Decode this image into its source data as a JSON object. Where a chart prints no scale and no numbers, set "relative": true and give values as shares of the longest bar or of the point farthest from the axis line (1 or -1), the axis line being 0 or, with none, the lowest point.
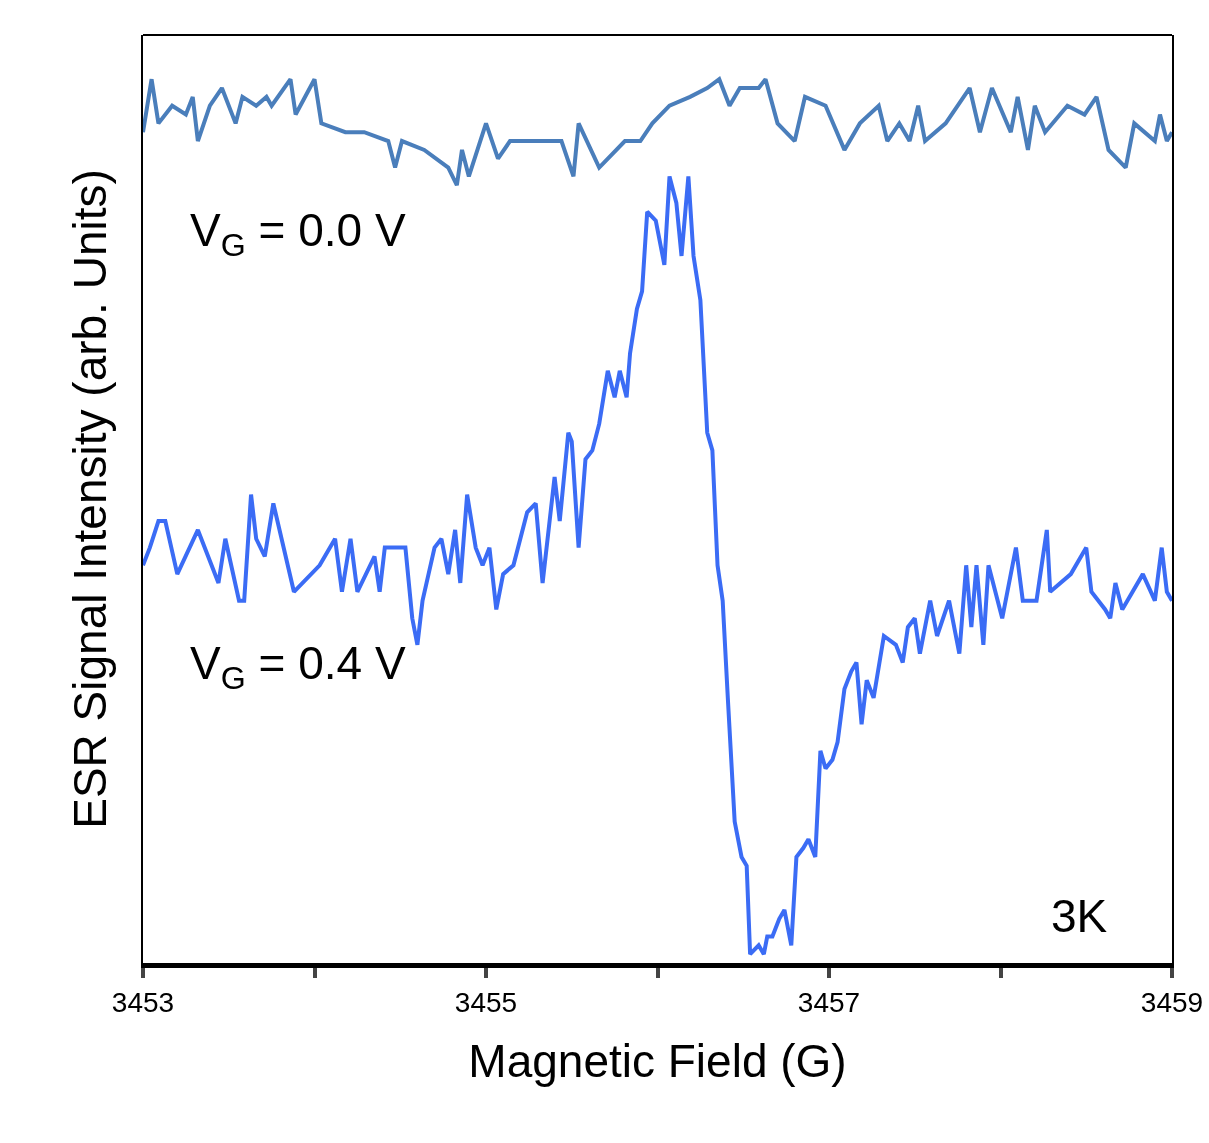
{
  "chart_data": {
    "type": "line",
    "relative": true,
    "xlabel": "Magnetic Field (G)",
    "ylabel": "ESR Signal Intensity (arb. Units)",
    "xlim": [
      3453,
      3459
    ],
    "xticks": [
      3453,
      {
        "value": 3454,
        "label": null
      },
      3455,
      {
        "value": 3456,
        "label": null
      },
      3457,
      {
        "value": 3458,
        "label": null
      },
      3459
    ],
    "grid": false,
    "legend": false,
    "marker": "none",
    "line_style": "solid",
    "annotations": [
      "3K"
    ],
    "series": [
      {
        "name": "V$_{G}$ = 0.0 V",
        "color": "#4a7ebb",
        "x": [
          3453.0,
          3453.05,
          3453.09,
          3453.17,
          3453.25,
          3453.29,
          3453.32,
          3453.39,
          3453.46,
          3453.54,
          3453.58,
          3453.66,
          3453.72,
          3453.75,
          3453.86,
          3453.89,
          3454.0,
          3454.04,
          3454.18,
          3454.29,
          3454.43,
          3454.47,
          3454.51,
          3454.64,
          3454.78,
          3454.83,
          3454.86,
          3454.9,
          3455.0,
          3455.07,
          3455.14,
          3455.3,
          3455.44,
          3455.51,
          3455.54,
          3455.66,
          3455.81,
          3455.9,
          3455.97,
          3456.07,
          3456.19,
          3456.29,
          3456.36,
          3456.42,
          3456.48,
          3456.59,
          3456.63,
          3456.7,
          3456.8,
          3456.86,
          3456.98,
          3457.09,
          3457.18,
          3457.29,
          3457.34,
          3457.41,
          3457.47,
          3457.52,
          3457.56,
          3457.68,
          3457.82,
          3457.88,
          3457.95,
          3458.06,
          3458.1,
          3458.16,
          3458.2,
          3458.26,
          3458.39,
          3458.49,
          3458.56,
          3458.63,
          3458.73,
          3458.78,
          3458.9,
          3458.93,
          3458.97,
          3459.0
        ],
        "values": [
          0.94,
          1.0,
          0.95,
          0.97,
          0.96,
          0.98,
          0.93,
          0.97,
          0.99,
          0.95,
          0.98,
          0.97,
          0.98,
          0.97,
          1.0,
          0.96,
          1.0,
          0.95,
          0.94,
          0.94,
          0.93,
          0.9,
          0.93,
          0.92,
          0.9,
          0.88,
          0.92,
          0.89,
          0.95,
          0.91,
          0.93,
          0.93,
          0.93,
          0.89,
          0.95,
          0.9,
          0.93,
          0.93,
          0.95,
          0.97,
          0.98,
          0.99,
          1.0,
          0.97,
          0.99,
          0.99,
          1.0,
          0.95,
          0.93,
          0.98,
          0.97,
          0.92,
          0.95,
          0.97,
          0.93,
          0.95,
          0.93,
          0.97,
          0.93,
          0.95,
          0.99,
          0.94,
          0.99,
          0.94,
          0.98,
          0.92,
          0.97,
          0.94,
          0.97,
          0.96,
          0.98,
          0.92,
          0.9,
          0.95,
          0.93,
          0.96,
          0.93,
          0.94
        ]
      },
      {
        "name": "V$_{G}$ = 0.4 V",
        "color": "#3b6cf5",
        "x": [
          3453.0,
          3453.04,
          3453.09,
          3453.13,
          3453.2,
          3453.32,
          3453.44,
          3453.48,
          3453.56,
          3453.59,
          3453.63,
          3453.66,
          3453.71,
          3453.76,
          3453.88,
          3454.03,
          3454.12,
          3454.16,
          3454.21,
          3454.25,
          3454.35,
          3454.38,
          3454.41,
          3454.53,
          3454.57,
          3454.6,
          3454.63,
          3454.7,
          3454.74,
          3454.78,
          3454.82,
          3454.85,
          3454.89,
          3454.94,
          3454.98,
          3455.02,
          3455.06,
          3455.1,
          3455.16,
          3455.24,
          3455.29,
          3455.33,
          3455.4,
          3455.43,
          3455.48,
          3455.5,
          3455.54,
          3455.58,
          3455.62,
          3455.66,
          3455.71,
          3455.75,
          3455.78,
          3455.82,
          3455.84,
          3455.88,
          3455.91,
          3455.94,
          3455.99,
          3456.01,
          3456.04,
          3456.07,
          3456.11,
          3456.14,
          3456.18,
          3456.21,
          3456.25,
          3456.29,
          3456.32,
          3456.35,
          3456.38,
          3456.41,
          3456.45,
          3456.49,
          3456.52,
          3456.54,
          3456.59,
          3456.62,
          3456.64,
          3456.67,
          3456.71,
          3456.74,
          3456.78,
          3456.81,
          3456.85,
          3456.88,
          3456.92,
          3456.95,
          3456.98,
          3457.02,
          3457.05,
          3457.09,
          3457.13,
          3457.16,
          3457.19,
          3457.22,
          3457.26,
          3457.32,
          3457.39,
          3457.43,
          3457.46,
          3457.5,
          3457.53,
          3457.59,
          3457.63,
          3457.7,
          3457.76,
          3457.8,
          3457.83,
          3457.86,
          3457.9,
          3457.93,
          3458.01,
          3458.09,
          3458.13,
          3458.21,
          3458.27,
          3458.29,
          3458.41,
          3458.5,
          3458.53,
          3458.61,
          3458.64,
          3458.67,
          3458.71,
          3458.83,
          3458.9,
          3458.94,
          3458.97,
          3459.0
        ],
        "values": [
          0.45,
          0.47,
          0.5,
          0.5,
          0.44,
          0.49,
          0.43,
          0.48,
          0.41,
          0.41,
          0.53,
          0.48,
          0.46,
          0.52,
          0.42,
          0.45,
          0.48,
          0.42,
          0.48,
          0.42,
          0.46,
          0.42,
          0.47,
          0.47,
          0.39,
          0.36,
          0.41,
          0.47,
          0.48,
          0.44,
          0.49,
          0.43,
          0.53,
          0.47,
          0.45,
          0.47,
          0.4,
          0.44,
          0.45,
          0.51,
          0.52,
          0.43,
          0.55,
          0.5,
          0.6,
          0.59,
          0.47,
          0.57,
          0.58,
          0.61,
          0.67,
          0.64,
          0.67,
          0.64,
          0.69,
          0.74,
          0.76,
          0.85,
          0.84,
          0.82,
          0.79,
          0.89,
          0.86,
          0.8,
          0.89,
          0.8,
          0.75,
          0.6,
          0.58,
          0.45,
          0.41,
          0.3,
          0.16,
          0.12,
          0.11,
          0.01,
          0.02,
          0.01,
          0.03,
          0.03,
          0.05,
          0.06,
          0.02,
          0.12,
          0.13,
          0.14,
          0.12,
          0.24,
          0.22,
          0.23,
          0.25,
          0.31,
          0.33,
          0.34,
          0.27,
          0.32,
          0.3,
          0.37,
          0.36,
          0.34,
          0.38,
          0.39,
          0.35,
          0.41,
          0.37,
          0.41,
          0.35,
          0.45,
          0.38,
          0.45,
          0.36,
          0.45,
          0.39,
          0.47,
          0.41,
          0.41,
          0.49,
          0.42,
          0.44,
          0.47,
          0.42,
          0.4,
          0.39,
          0.43,
          0.4,
          0.44,
          0.41,
          0.47,
          0.42,
          0.41
        ]
      }
    ]
  }
}
